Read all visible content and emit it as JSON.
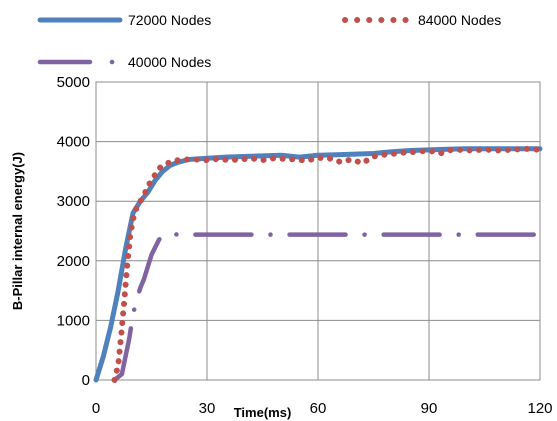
{
  "chart_data": {
    "type": "line",
    "title": "",
    "xlabel": "Time(ms)",
    "ylabel": "B-Pillar internal energy(J)",
    "xlim": [
      0,
      120
    ],
    "ylim": [
      0,
      5000
    ],
    "x_ticks": [
      0,
      30,
      60,
      90,
      120
    ],
    "y_ticks": [
      0,
      1000,
      2000,
      3000,
      4000,
      5000
    ],
    "grid": "vertical-and-horizontal",
    "legend_position": "top",
    "series": [
      {
        "name": "72000 Nodes",
        "color": "#4F81BD",
        "style": "solid",
        "x": [
          0,
          2,
          4,
          6,
          8,
          10,
          12,
          14,
          16,
          18,
          20,
          22,
          25,
          30,
          35,
          40,
          45,
          50,
          55,
          60,
          65,
          70,
          75,
          80,
          85,
          90,
          95,
          100,
          105,
          110,
          115,
          120
        ],
        "y": [
          0,
          400,
          900,
          1500,
          2200,
          2800,
          3000,
          3150,
          3350,
          3500,
          3600,
          3650,
          3700,
          3720,
          3740,
          3750,
          3760,
          3770,
          3740,
          3770,
          3780,
          3790,
          3800,
          3830,
          3850,
          3860,
          3870,
          3880,
          3880,
          3880,
          3880,
          3880
        ]
      },
      {
        "name": "84000 Nodes",
        "color": "#C0504D",
        "style": "dotted",
        "x": [
          5,
          6,
          6.8,
          7.6,
          8.4,
          9.2,
          10,
          11,
          12,
          13,
          14,
          15.5,
          17,
          19,
          21,
          24,
          27,
          30,
          33,
          36,
          39,
          42,
          45,
          48,
          51,
          54,
          57,
          60,
          63,
          66,
          69,
          72,
          75,
          78,
          81,
          84,
          87,
          90,
          93,
          96,
          99,
          102,
          105,
          108,
          111,
          114,
          117,
          120
        ],
        "y": [
          0,
          250,
          750,
          1300,
          1900,
          2400,
          2700,
          2900,
          3000,
          3100,
          3250,
          3400,
          3550,
          3630,
          3680,
          3700,
          3700,
          3690,
          3710,
          3690,
          3700,
          3720,
          3690,
          3720,
          3710,
          3700,
          3680,
          3730,
          3720,
          3660,
          3700,
          3640,
          3750,
          3780,
          3800,
          3820,
          3830,
          3850,
          3800,
          3860,
          3860,
          3850,
          3870,
          3850,
          3860,
          3870,
          3880,
          3860
        ]
      },
      {
        "name": "40000 Nodes",
        "color": "#8064A2",
        "style": "dash-dot",
        "x": [
          5,
          7,
          9,
          10,
          11,
          12,
          13,
          15,
          17,
          18,
          19,
          20,
          21,
          22,
          25,
          30,
          35,
          40,
          45,
          50,
          55,
          60,
          65,
          70,
          75,
          80,
          85,
          90,
          95,
          100,
          105,
          110,
          115,
          120
        ],
        "y": [
          0,
          100,
          700,
          1100,
          1350,
          1550,
          1700,
          2100,
          2350,
          2420,
          2450,
          2460,
          2450,
          2440,
          2440,
          2440,
          2440,
          2440,
          2440,
          2440,
          2440,
          2440,
          2440,
          2440,
          2440,
          2440,
          2440,
          2440,
          2440,
          2440,
          2440,
          2440,
          2440,
          2440
        ]
      }
    ]
  }
}
